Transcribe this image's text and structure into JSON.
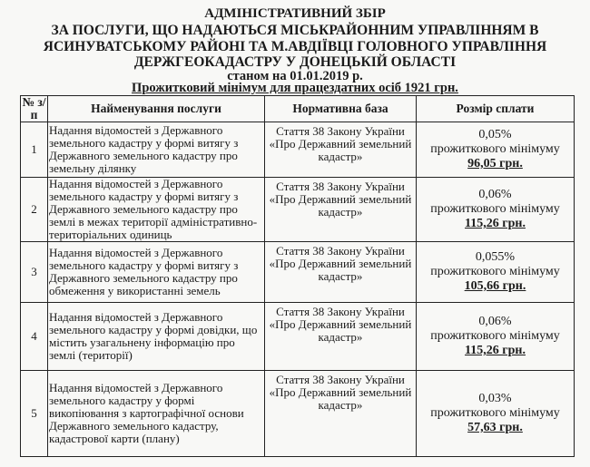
{
  "header": {
    "lines": [
      "АДМІНІСТРАТИВНИЙ  ЗБІР",
      "ЗА ПОСЛУГИ, ЩО НАДАЮТЬСЯ МІСЬКРАЙОННИМ УПРАВЛІННЯМ В",
      "ЯСИНУВАТСЬКОМУ РАЙОНІ ТА М.АВДІЇВЦІ ГОЛОВНОГО УПРАВЛІННЯ",
      "ДЕРЖГЕОКАДАСТРУ У ДОНЕЦЬКІЙ ОБЛАСТІ"
    ],
    "date_line": "станом на 01.01.2019 р.",
    "minimum_line": "Прожитковий мінімум для працездатних осіб 1921 грн."
  },
  "table": {
    "columns": [
      "№ з/п",
      "Найменування послуги",
      "Нормативна база",
      "Розмір сплати"
    ],
    "rows": [
      {
        "num": "1",
        "name": "Надання відомостей з Державного земельного кадастру у формі витягу з Державного земельного кадастру про земельну ділянку",
        "base": "Стаття 38 Закону України «Про Державний земельний кадастр»",
        "percent": "0,05%",
        "of": "прожиткового мінімуму",
        "amount": "96,05 грн."
      },
      {
        "num": "2",
        "name": "Надання відомостей з Державного земельного кадастру у формі витягу з Державного земельного кадастру про землі в межах території адміністративно-територіальних одиниць",
        "base": "Стаття 38 Закону України «Про Державний земельний кадастр»",
        "percent": "0,06%",
        "of": "прожиткового мінімуму",
        "amount": "115,26 грн."
      },
      {
        "num": "3",
        "name": "Надання відомостей з Державного земельного кадастру у формі витягу з Державного земельного кадастру про обмеження у використанні земель",
        "base": "Стаття 38 Закону України «Про Державний земельний кадастр»",
        "percent": "0,055%",
        "of": "прожиткового мінімуму",
        "amount": "105,66 грн."
      },
      {
        "num": "4",
        "name": "Надання відомостей з Державного земельного кадастру у формі довідки, що містить узагальнену інформацію про землі (території)",
        "base": "Стаття 38 Закону України «Про Державний земельний кадастр»",
        "percent": "0,06%",
        "of": "прожиткового мінімуму",
        "amount": "115,26 грн."
      },
      {
        "num": "5",
        "name": "Надання відомостей з Державного земельного кадастру у формі викопіювання з картографічної основи Державного земельного кадастру, кадастрової карти (плану)",
        "base": "Стаття 38 Закону України «Про Державний земельний кадастр»",
        "percent": "0,03%",
        "of": "прожиткового мінімуму",
        "amount": "57,63 грн."
      }
    ]
  }
}
